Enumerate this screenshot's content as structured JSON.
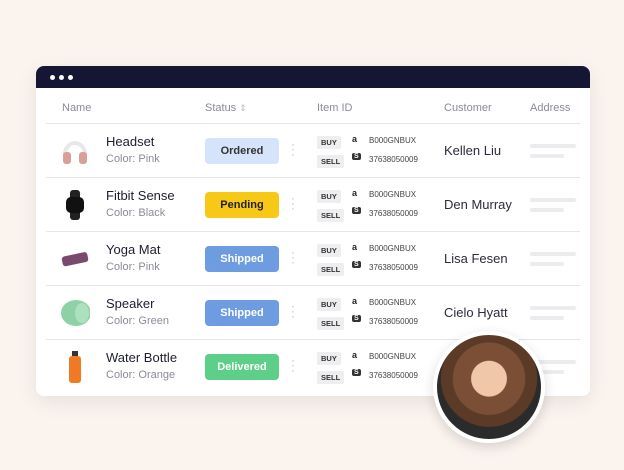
{
  "columns": {
    "name": "Name",
    "status": "Status",
    "item_id": "Item ID",
    "customer": "Customer",
    "address": "Address"
  },
  "labels": {
    "buy": "BUY",
    "sell": "SELL"
  },
  "rows": [
    {
      "name": "Headset",
      "color": "Color: Pink",
      "status": "Ordered",
      "buy_id": "B000GNBUX",
      "sell_id": "37638050009",
      "customer": "Kellen Liu",
      "icon": "headset"
    },
    {
      "name": "Fitbit Sense",
      "color": "Color: Black",
      "status": "Pending",
      "buy_id": "B000GNBUX",
      "sell_id": "37638050009",
      "customer": "Den Murray",
      "icon": "watch"
    },
    {
      "name": "Yoga Mat",
      "color": "Color: Pink",
      "status": "Shipped",
      "buy_id": "B000GNBUX",
      "sell_id": "37638050009",
      "customer": "Lisa Fesen",
      "icon": "yoga-mat"
    },
    {
      "name": "Speaker",
      "color": "Color: Green",
      "status": "Shipped",
      "buy_id": "B000GNBUX",
      "sell_id": "37638050009",
      "customer": "Cielo Hyatt",
      "icon": "speaker"
    },
    {
      "name": "Water Bottle",
      "color": "Color: Orange",
      "status": "Delivered",
      "buy_id": "B000GNBUX",
      "sell_id": "37638050009",
      "customer": "",
      "icon": "bottle"
    }
  ],
  "status_colors": {
    "Ordered": [
      "#d6e4fb",
      "#333333"
    ],
    "Pending": [
      "#f7c815",
      "#222222"
    ],
    "Shipped": [
      "#6d9ce0",
      "#ffffff"
    ],
    "Delivered": [
      "#5dcf88",
      "#ffffff"
    ]
  }
}
